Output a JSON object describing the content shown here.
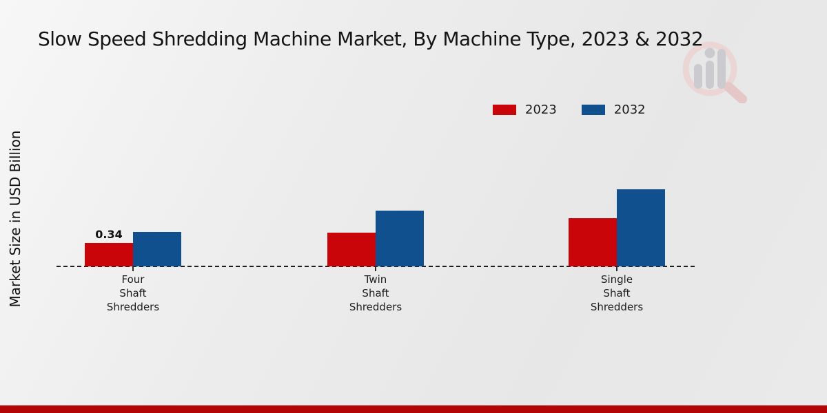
{
  "chart_data": {
    "type": "bar",
    "title": "Slow Speed Shredding Machine Market, By Machine Type, 2023 & 2032",
    "ylabel": "Market Size in USD Billion",
    "xlabel": "",
    "categories": [
      "Four Shaft Shredders",
      "Twin Shaft Shredders",
      "Single Shaft Shredders"
    ],
    "category_lines": [
      [
        "Four",
        "Shaft",
        "Shredders"
      ],
      [
        "Twin",
        "Shaft",
        "Shredders"
      ],
      [
        "Single",
        "Shaft",
        "Shredders"
      ]
    ],
    "series": [
      {
        "name": "2023",
        "color": "#c9050a",
        "values": [
          0.34,
          0.49,
          0.7
        ]
      },
      {
        "name": "2032",
        "color": "#10508e",
        "values": [
          0.5,
          0.81,
          1.12
        ]
      }
    ],
    "bar_labels": [
      {
        "series": 0,
        "category": 0,
        "text": "0.34"
      }
    ],
    "ylim": [
      0,
      1.2
    ],
    "grid": false,
    "legend_position": "top-right",
    "baseline_style": "dashed",
    "y_axis_ticks_visible": false
  },
  "icons": {
    "watermark": "magnifier-bar-chart-logo"
  },
  "footer": {
    "accent_color": "#b30505"
  }
}
